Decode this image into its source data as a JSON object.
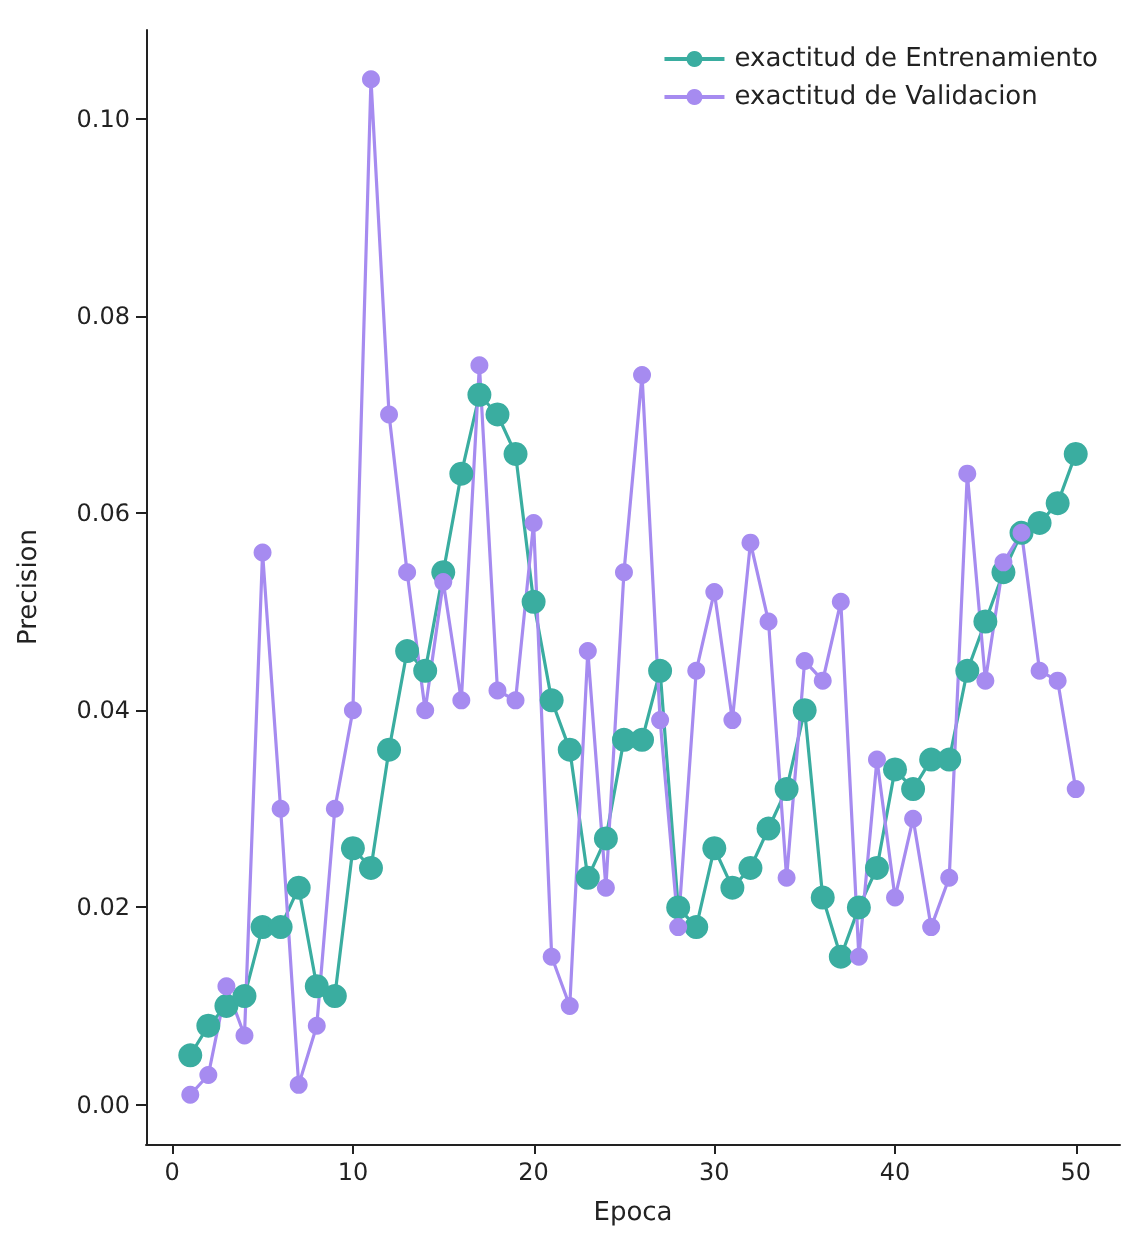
{
  "chart_data": {
    "type": "line",
    "xlabel": "Epoca",
    "ylabel": "Precision",
    "x": [
      1,
      2,
      3,
      4,
      5,
      6,
      7,
      8,
      9,
      10,
      11,
      12,
      13,
      14,
      15,
      16,
      17,
      18,
      19,
      20,
      21,
      22,
      23,
      24,
      25,
      26,
      27,
      28,
      29,
      30,
      31,
      32,
      33,
      34,
      35,
      36,
      37,
      38,
      39,
      40,
      41,
      42,
      43,
      44,
      45,
      46,
      47,
      48,
      49,
      50
    ],
    "series": [
      {
        "name": "exactitud de Entrenamiento",
        "color": "#3aada0",
        "values": [
          0.005,
          0.008,
          0.01,
          0.011,
          0.018,
          0.018,
          0.022,
          0.012,
          0.011,
          0.026,
          0.024,
          0.036,
          0.046,
          0.044,
          0.054,
          0.064,
          0.072,
          0.07,
          0.066,
          0.051,
          0.041,
          0.036,
          0.023,
          0.027,
          0.037,
          0.037,
          0.044,
          0.02,
          0.018,
          0.026,
          0.022,
          0.024,
          0.028,
          0.032,
          0.04,
          0.021,
          0.015,
          0.02,
          0.024,
          0.034,
          0.032,
          0.035,
          0.035,
          0.044,
          0.049,
          0.054,
          0.058,
          0.059,
          0.061,
          0.066
        ]
      },
      {
        "name": "exactitud de Validacion",
        "color": "#a68bf0",
        "values": [
          0.001,
          0.003,
          0.012,
          0.007,
          0.056,
          0.03,
          0.002,
          0.008,
          0.03,
          0.04,
          0.104,
          0.07,
          0.054,
          0.04,
          0.053,
          0.041,
          0.075,
          0.042,
          0.041,
          0.059,
          0.015,
          0.01,
          0.046,
          0.022,
          0.054,
          0.074,
          0.039,
          0.018,
          0.044,
          0.052,
          0.039,
          0.057,
          0.049,
          0.023,
          0.045,
          0.043,
          0.051,
          0.015,
          0.035,
          0.021,
          0.029,
          0.018,
          0.023,
          0.064,
          0.043,
          0.055,
          0.058,
          0.044,
          0.043,
          0.032
        ]
      }
    ],
    "xlim": [
      -1.45,
      52.45
    ],
    "xticks": [
      0,
      10,
      20,
      30,
      40,
      50
    ],
    "ylim": [
      -0.004,
      0.109
    ],
    "yticks": [
      {
        "value": 0,
        "label": "0.00"
      },
      {
        "value": 0.02,
        "label": "0.02"
      },
      {
        "value": 0.04,
        "label": "0.04"
      },
      {
        "value": 0.06,
        "label": "0.06"
      },
      {
        "value": 0.08,
        "label": "0.08"
      },
      {
        "value": 0.1,
        "label": "0.10"
      }
    ],
    "grid": false,
    "legend": "top right",
    "marker": "circle",
    "line_style": "solid"
  }
}
